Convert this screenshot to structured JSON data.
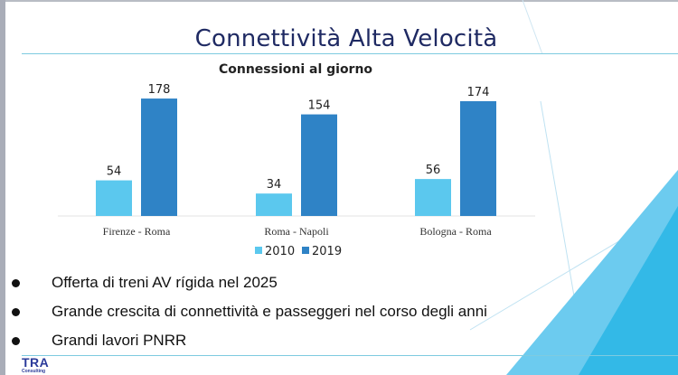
{
  "slide": {
    "title": "Connettività Alta Velocità",
    "bullets": [
      "Offerta di treni AV rígida nel 2025",
      "Grande crescita di connettività e passeggeri nel corso degli anni",
      "Grandi lavori PNRR"
    ],
    "logo": {
      "name": "TRA",
      "subtitle": "Consulting"
    },
    "colors": {
      "title": "#1f2a63",
      "accent": "#33b9e7",
      "accent_light": "#6ccbef",
      "logo": "#2b3a9a"
    }
  },
  "chart_data": {
    "type": "bar",
    "title": "Connessioni al giorno",
    "categories": [
      "Firenze - Roma",
      "Roma - Napoli",
      "Bologna - Roma"
    ],
    "series": [
      {
        "name": "2010",
        "values": [
          54,
          34,
          56
        ],
        "color": "#5bc8ee"
      },
      {
        "name": "2019",
        "values": [
          178,
          154,
          174
        ],
        "color": "#2f83c6"
      }
    ],
    "xlabel": "",
    "ylabel": "",
    "ylim": [
      0,
      200
    ],
    "grid": false,
    "data_labels": true,
    "legend": "bottom"
  }
}
